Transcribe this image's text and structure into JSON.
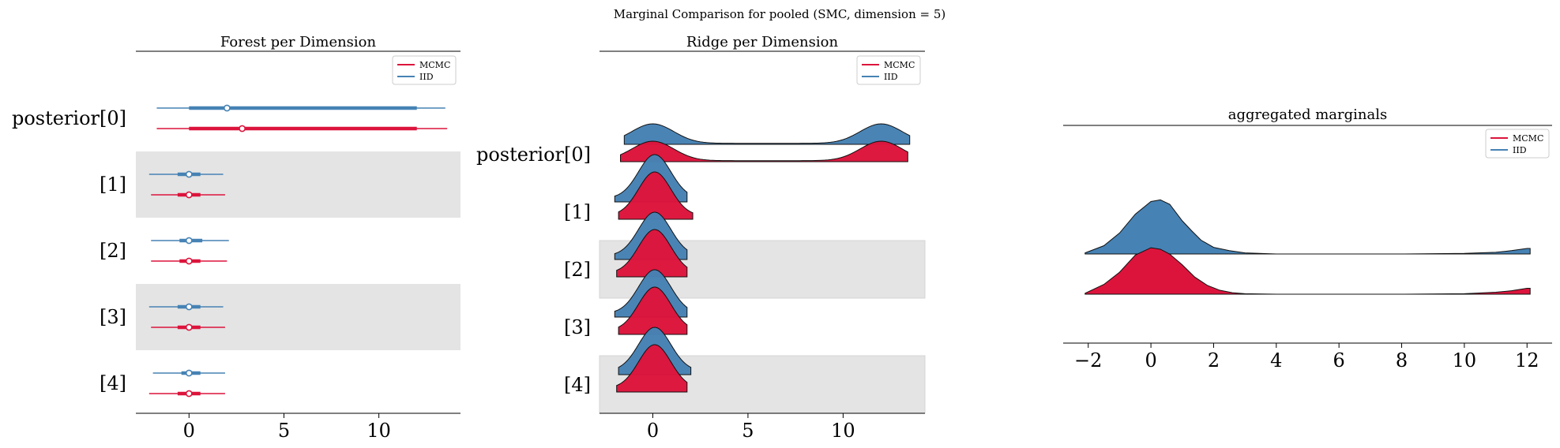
{
  "suptitle": "Marginal Comparison for pooled (SMC, dimension = 5)",
  "colors": {
    "mcmc": "#dc143c",
    "iid": "#4682b4",
    "band": "#e4e4e4"
  },
  "legend": {
    "mcmc": "MCMC",
    "iid": "IID"
  },
  "chart_data": [
    {
      "type": "forest",
      "title": "Forest per Dimension",
      "xlim": [
        -2.8,
        14.3
      ],
      "xticks": [
        0,
        5,
        10
      ],
      "legend": "top-right",
      "rows": [
        "posterior[0]",
        "[1]",
        "[2]",
        "[3]",
        "[4]"
      ],
      "shaded_rows": [
        1,
        3
      ],
      "series": [
        {
          "name": "IID",
          "color": "#4682b4",
          "intervals": [
            {
              "hdi": [
                -1.7,
                13.5
              ],
              "iqr": [
                0.0,
                12.0
              ],
              "point": 2.0
            },
            {
              "hdi": [
                -2.1,
                1.8
              ],
              "iqr": [
                -0.6,
                0.6
              ],
              "point": 0.0
            },
            {
              "hdi": [
                -2.0,
                2.1
              ],
              "iqr": [
                -0.5,
                0.7
              ],
              "point": 0.0
            },
            {
              "hdi": [
                -2.1,
                1.8
              ],
              "iqr": [
                -0.6,
                0.6
              ],
              "point": 0.0
            },
            {
              "hdi": [
                -1.9,
                1.9
              ],
              "iqr": [
                -0.4,
                0.6
              ],
              "point": 0.0
            }
          ]
        },
        {
          "name": "MCMC",
          "color": "#dc143c",
          "intervals": [
            {
              "hdi": [
                -1.7,
                13.6
              ],
              "iqr": [
                0.0,
                12.0
              ],
              "point": 2.8
            },
            {
              "hdi": [
                -2.0,
                1.9
              ],
              "iqr": [
                -0.6,
                0.6
              ],
              "point": 0.0
            },
            {
              "hdi": [
                -2.0,
                2.0
              ],
              "iqr": [
                -0.5,
                0.6
              ],
              "point": 0.0
            },
            {
              "hdi": [
                -2.0,
                1.9
              ],
              "iqr": [
                -0.6,
                0.6
              ],
              "point": 0.0
            },
            {
              "hdi": [
                -2.1,
                1.9
              ],
              "iqr": [
                -0.6,
                0.6
              ],
              "point": 0.0
            }
          ]
        }
      ]
    },
    {
      "type": "ridge",
      "title": "Ridge per Dimension",
      "xlim": [
        -2.8,
        14.3
      ],
      "xticks": [
        0,
        5,
        10
      ],
      "legend": "top-right",
      "rows": [
        "posterior[0]",
        "[1]",
        "[2]",
        "[3]",
        "[4]"
      ],
      "shaded_rows": [
        1,
        3
      ],
      "series": [
        {
          "name": "IID",
          "color": "#4682b4",
          "ranges": [
            [
              -1.5,
              13.5
            ],
            [
              -2.0,
              1.8
            ],
            [
              -2.0,
              1.8
            ],
            [
              -2.0,
              1.8
            ],
            [
              -1.8,
              2.0
            ]
          ]
        },
        {
          "name": "MCMC",
          "color": "#dc143c",
          "ranges": [
            [
              -1.7,
              13.4
            ],
            [
              -1.8,
              2.1
            ],
            [
              -1.9,
              1.8
            ],
            [
              -1.8,
              1.8
            ],
            [
              -1.9,
              1.8
            ]
          ]
        }
      ]
    },
    {
      "type": "area",
      "title": "aggregated marginals",
      "xlim": [
        -2.8,
        12.8
      ],
      "xticks": [
        -2,
        0,
        2,
        4,
        6,
        8,
        10,
        12
      ],
      "legend": "top-right",
      "series": [
        {
          "name": "IID",
          "color": "#4682b4",
          "x": [
            -2.1,
            -1.5,
            -1.0,
            -0.5,
            0.0,
            0.3,
            0.6,
            1.0,
            1.3,
            1.6,
            2.0,
            2.5,
            3.0,
            4.0,
            6.0,
            8.0,
            10.0,
            11.0,
            11.5,
            12.0,
            12.1
          ],
          "density": [
            0.02,
            0.15,
            0.38,
            0.72,
            0.95,
            0.98,
            0.9,
            0.6,
            0.42,
            0.25,
            0.12,
            0.06,
            0.02,
            0.0,
            0.0,
            0.0,
            0.01,
            0.03,
            0.06,
            0.1,
            0.1
          ]
        },
        {
          "name": "MCMC",
          "color": "#dc143c",
          "x": [
            -2.1,
            -1.5,
            -1.0,
            -0.5,
            0.0,
            0.3,
            0.6,
            1.0,
            1.4,
            1.8,
            2.2,
            2.6,
            3.0,
            4.0,
            6.0,
            8.0,
            10.0,
            11.0,
            11.5,
            12.0,
            12.1
          ],
          "density": [
            0.02,
            0.2,
            0.45,
            0.8,
            0.95,
            0.92,
            0.82,
            0.6,
            0.35,
            0.18,
            0.08,
            0.03,
            0.01,
            0.0,
            0.0,
            0.0,
            0.01,
            0.04,
            0.07,
            0.12,
            0.12
          ]
        }
      ]
    }
  ]
}
